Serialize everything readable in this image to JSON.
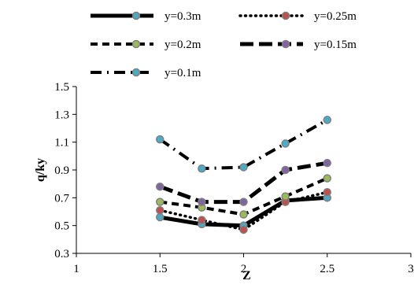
{
  "chart_data": {
    "type": "line",
    "title": "",
    "xlabel": "Z",
    "ylabel": "q/ky",
    "xlim": [
      1,
      3
    ],
    "ylim": [
      0.3,
      1.5
    ],
    "x_ticks": [
      "1",
      "1.5",
      "2",
      "2.5",
      "3"
    ],
    "y_ticks": [
      "0.3",
      "0.5",
      "0.7",
      "0.9",
      "1.1",
      "1.3",
      "1.5"
    ],
    "grid": false,
    "legend_position": "top",
    "x": [
      1.5,
      1.75,
      2.0,
      2.25,
      2.5
    ],
    "series": [
      {
        "name": "y=0.3m",
        "values": [
          0.56,
          0.51,
          0.5,
          0.68,
          0.7
        ],
        "line_style": "solid",
        "marker_color": "#4fa7c6"
      },
      {
        "name": "y=0.25m",
        "values": [
          0.61,
          0.54,
          0.47,
          0.67,
          0.74
        ],
        "line_style": "dotted",
        "marker_color": "#c0504d"
      },
      {
        "name": "y=0.2m",
        "values": [
          0.67,
          0.63,
          0.58,
          0.71,
          0.84
        ],
        "line_style": "dashed",
        "marker_color": "#9bbb59"
      },
      {
        "name": "y=0.15m",
        "values": [
          0.78,
          0.67,
          0.67,
          0.9,
          0.95
        ],
        "line_style": "longdash",
        "marker_color": "#8064a2"
      },
      {
        "name": "y=0.1m",
        "values": [
          1.12,
          0.91,
          0.92,
          1.09,
          1.26
        ],
        "line_style": "dashdot",
        "marker_color": "#4bacc6"
      }
    ]
  }
}
